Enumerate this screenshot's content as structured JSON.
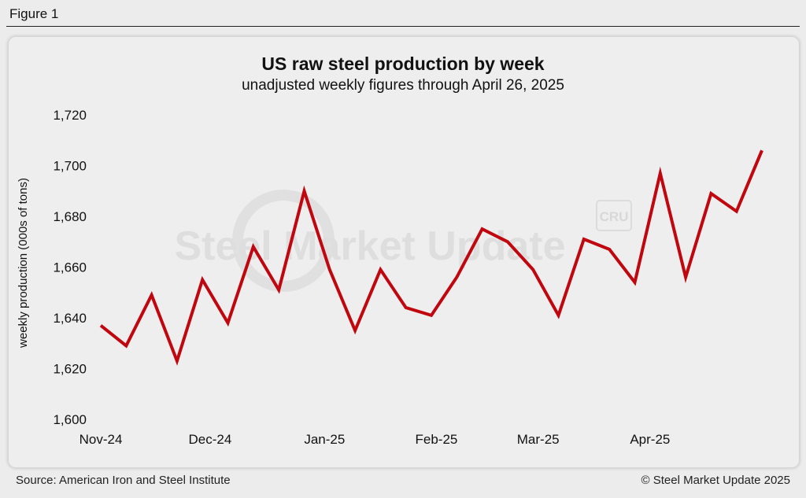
{
  "figure_label": "Figure 1",
  "footer": {
    "source": "Source: American Iron and Steel Institute",
    "copyright": "© Steel Market Update 2025"
  },
  "watermark": {
    "text": "Steel Market Update",
    "badge": "CRU"
  },
  "colors": {
    "line": "#c0070f",
    "background": "#eeeeee",
    "text": "#111111"
  },
  "chart_data": {
    "type": "line",
    "title": "US raw steel production by week",
    "subtitle": "unadjusted weekly figures through April 26, 2025",
    "xlabel": "",
    "ylabel": "weekly production (000s of tons)",
    "ylim": [
      1600,
      1720
    ],
    "yticks": [
      1600,
      1620,
      1640,
      1660,
      1680,
      1700,
      1720
    ],
    "ytick_labels": [
      "1,600",
      "1,620",
      "1,640",
      "1,660",
      "1,680",
      "1,700",
      "1,720"
    ],
    "xticks": [
      {
        "label": "Nov-24",
        "index": 0
      },
      {
        "label": "Dec-24",
        "index": 4.3
      },
      {
        "label": "Jan-25",
        "index": 8.8
      },
      {
        "label": "Feb-25",
        "index": 13.2
      },
      {
        "label": "Mar-25",
        "index": 17.2
      },
      {
        "label": "Apr-25",
        "index": 21.6
      }
    ],
    "grid": false,
    "series": [
      {
        "name": "Weekly production",
        "values": [
          1637,
          1629,
          1649,
          1623,
          1655,
          1638,
          1668,
          1651,
          1690,
          1659,
          1635,
          1659,
          1644,
          1641,
          1656,
          1675,
          1670,
          1659,
          1641,
          1671,
          1667,
          1654,
          1697,
          1656,
          1689,
          1682,
          1706
        ]
      }
    ]
  }
}
